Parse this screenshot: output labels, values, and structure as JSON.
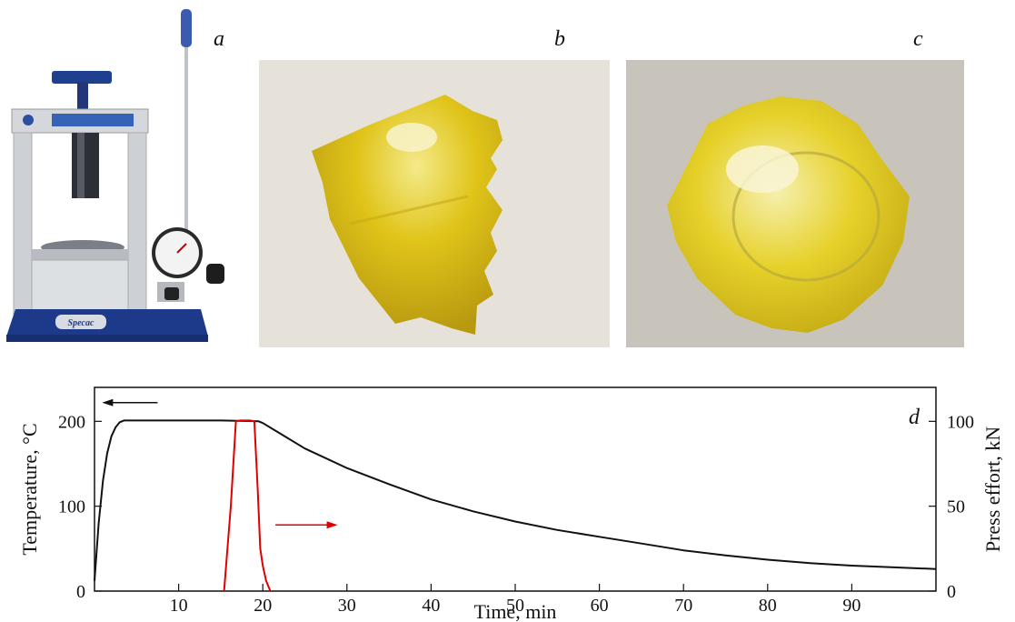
{
  "panels": {
    "a": "a",
    "b": "b",
    "c": "c",
    "d": "d"
  },
  "press_photo": {
    "brand_text": "Specac",
    "colors": {
      "base": "#1d3a8a",
      "frame": "#c8ccd2",
      "handle": "#3a5bb0"
    }
  },
  "sample_colors": {
    "film": "#e3c61b",
    "film_highlight": "#f6ec8a",
    "background_b": "#e7e2d9",
    "background_c": "#c9c4bb"
  },
  "chart_data": {
    "type": "line",
    "title": "",
    "xlabel": "Time, min",
    "ylabel_left": "Temperature, °C",
    "ylabel_right": "Press effort, kN",
    "xlim": [
      0,
      100
    ],
    "ylim_left": [
      0,
      240
    ],
    "ylim_right": [
      0,
      120
    ],
    "x_ticks": [
      10,
      20,
      30,
      40,
      50,
      60,
      70,
      80,
      90
    ],
    "y_ticks_left": [
      0,
      100,
      200
    ],
    "y_ticks_right": [
      0,
      50,
      100
    ],
    "series": [
      {
        "axis": "left",
        "color": "#111111",
        "x": [
          0,
          0.5,
          1,
          1.5,
          2,
          2.5,
          3,
          3.5,
          4,
          6,
          10,
          15,
          19.5,
          20,
          22,
          25,
          30,
          35,
          40,
          45,
          50,
          55,
          60,
          65,
          70,
          75,
          80,
          85,
          90,
          95,
          100
        ],
        "values": [
          12,
          80,
          130,
          162,
          182,
          193,
          199,
          201,
          201,
          201,
          201,
          201,
          200,
          198,
          186,
          168,
          145,
          126,
          108,
          94,
          82,
          72,
          64,
          56,
          48,
          42,
          37,
          33,
          30,
          28,
          26
        ]
      },
      {
        "axis": "right",
        "color": "#e00000",
        "x": [
          15.4,
          16.2,
          16.8,
          17.3,
          18.5,
          19.0,
          19.4,
          19.7,
          20.0,
          20.4,
          20.9
        ],
        "values": [
          0,
          50,
          100,
          100.5,
          100.5,
          100,
          60,
          25,
          15,
          6,
          0
        ]
      }
    ],
    "annotations": [
      {
        "direction": "left",
        "color": "#111111",
        "axis": "left"
      },
      {
        "direction": "right",
        "color": "#e00000",
        "axis": "right"
      }
    ]
  }
}
